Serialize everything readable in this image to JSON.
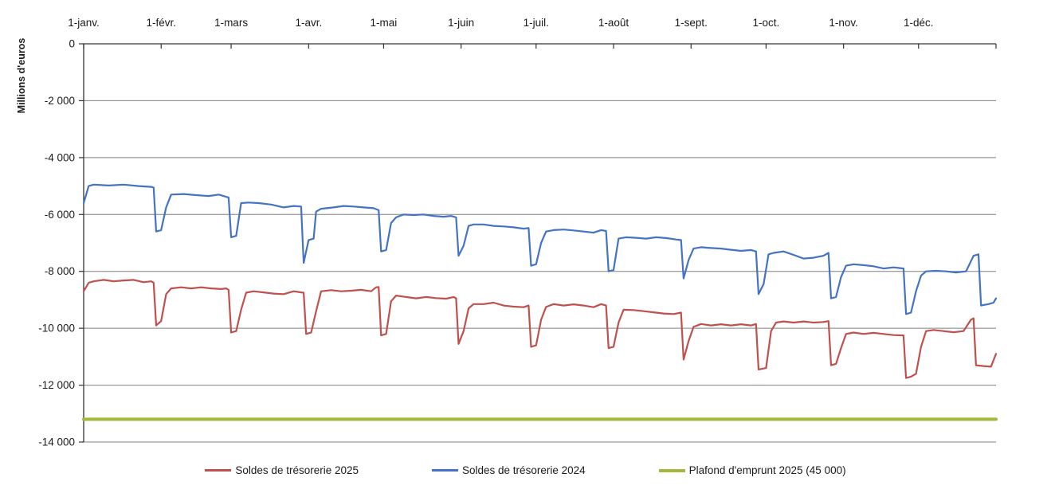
{
  "chart_data": {
    "type": "line",
    "title": "",
    "ylabel": "Millions d'euros",
    "grid": true,
    "legend_position": "bottom",
    "x_axis": {
      "tick_days": [
        0,
        31,
        59,
        90,
        120,
        151,
        181,
        212,
        243,
        273,
        304,
        334
      ],
      "tick_labels": [
        "1-janv.",
        "1-févr.",
        "1-mars",
        "1-avr.",
        "1-mai",
        "1-juin",
        "1-juil.",
        "1-août",
        "1-sept.",
        "1-oct.",
        "1-nov.",
        "1-déc."
      ],
      "days_total": 365
    },
    "y_axis": {
      "ticks": [
        0,
        -2000,
        -4000,
        -6000,
        -8000,
        -10000,
        -12000,
        -14000
      ],
      "tick_labels": [
        "0",
        "-2 000",
        "-4 000",
        "-6 000",
        "-8 000",
        "-10 000",
        "-12 000",
        "-14 000"
      ],
      "range": [
        0,
        -14000
      ]
    },
    "series": [
      {
        "name": "Soldes de trésorerie 2025",
        "color": "#c0504d",
        "stroke_width": 2.2,
        "points": [
          [
            0,
            -8700
          ],
          [
            2,
            -8400
          ],
          [
            4,
            -8350
          ],
          [
            8,
            -8300
          ],
          [
            12,
            -8350
          ],
          [
            16,
            -8320
          ],
          [
            20,
            -8300
          ],
          [
            24,
            -8380
          ],
          [
            27,
            -8350
          ],
          [
            28,
            -8400
          ],
          [
            29,
            -9900
          ],
          [
            31,
            -9750
          ],
          [
            33,
            -8800
          ],
          [
            35,
            -8600
          ],
          [
            39,
            -8560
          ],
          [
            43,
            -8600
          ],
          [
            47,
            -8560
          ],
          [
            51,
            -8600
          ],
          [
            55,
            -8620
          ],
          [
            57,
            -8600
          ],
          [
            58,
            -8650
          ],
          [
            59,
            -10150
          ],
          [
            61,
            -10100
          ],
          [
            63,
            -9350
          ],
          [
            65,
            -8750
          ],
          [
            68,
            -8700
          ],
          [
            72,
            -8740
          ],
          [
            76,
            -8780
          ],
          [
            80,
            -8800
          ],
          [
            84,
            -8700
          ],
          [
            87,
            -8740
          ],
          [
            88,
            -8750
          ],
          [
            89,
            -10200
          ],
          [
            91,
            -10150
          ],
          [
            93,
            -9400
          ],
          [
            95,
            -8700
          ],
          [
            99,
            -8660
          ],
          [
            103,
            -8700
          ],
          [
            107,
            -8680
          ],
          [
            111,
            -8650
          ],
          [
            115,
            -8700
          ],
          [
            117,
            -8560
          ],
          [
            118,
            -8550
          ],
          [
            119,
            -10250
          ],
          [
            121,
            -10200
          ],
          [
            123,
            -9050
          ],
          [
            125,
            -8850
          ],
          [
            129,
            -8900
          ],
          [
            133,
            -8950
          ],
          [
            137,
            -8900
          ],
          [
            141,
            -8940
          ],
          [
            145,
            -8960
          ],
          [
            148,
            -8900
          ],
          [
            149,
            -8950
          ],
          [
            150,
            -10550
          ],
          [
            152,
            -10100
          ],
          [
            154,
            -9300
          ],
          [
            156,
            -9150
          ],
          [
            160,
            -9150
          ],
          [
            164,
            -9100
          ],
          [
            168,
            -9200
          ],
          [
            172,
            -9240
          ],
          [
            176,
            -9260
          ],
          [
            178,
            -9200
          ],
          [
            179,
            -10650
          ],
          [
            181,
            -10600
          ],
          [
            183,
            -9700
          ],
          [
            185,
            -9250
          ],
          [
            188,
            -9150
          ],
          [
            192,
            -9200
          ],
          [
            196,
            -9160
          ],
          [
            200,
            -9200
          ],
          [
            204,
            -9260
          ],
          [
            207,
            -9150
          ],
          [
            209,
            -9200
          ],
          [
            210,
            -10700
          ],
          [
            212,
            -10650
          ],
          [
            214,
            -9800
          ],
          [
            216,
            -9350
          ],
          [
            220,
            -9360
          ],
          [
            224,
            -9400
          ],
          [
            228,
            -9440
          ],
          [
            232,
            -9480
          ],
          [
            236,
            -9500
          ],
          [
            239,
            -9450
          ],
          [
            240,
            -11100
          ],
          [
            242,
            -10450
          ],
          [
            244,
            -9950
          ],
          [
            247,
            -9850
          ],
          [
            251,
            -9900
          ],
          [
            255,
            -9860
          ],
          [
            259,
            -9900
          ],
          [
            263,
            -9860
          ],
          [
            267,
            -9900
          ],
          [
            269,
            -9850
          ],
          [
            270,
            -11450
          ],
          [
            273,
            -11400
          ],
          [
            275,
            -10100
          ],
          [
            277,
            -9800
          ],
          [
            280,
            -9760
          ],
          [
            284,
            -9800
          ],
          [
            288,
            -9760
          ],
          [
            292,
            -9800
          ],
          [
            296,
            -9780
          ],
          [
            298,
            -9750
          ],
          [
            299,
            -11300
          ],
          [
            301,
            -11250
          ],
          [
            303,
            -10700
          ],
          [
            305,
            -10200
          ],
          [
            308,
            -10150
          ],
          [
            312,
            -10200
          ],
          [
            316,
            -10160
          ],
          [
            320,
            -10200
          ],
          [
            324,
            -10240
          ],
          [
            328,
            -10250
          ],
          [
            329,
            -11750
          ],
          [
            331,
            -11700
          ],
          [
            333,
            -11600
          ],
          [
            335,
            -10650
          ],
          [
            337,
            -10100
          ],
          [
            340,
            -10060
          ],
          [
            344,
            -10100
          ],
          [
            348,
            -10140
          ],
          [
            352,
            -10100
          ],
          [
            355,
            -9700
          ],
          [
            356,
            -9650
          ],
          [
            357,
            -11300
          ],
          [
            360,
            -11330
          ],
          [
            363,
            -11350
          ],
          [
            365,
            -10900
          ]
        ]
      },
      {
        "name": "Soldes de trésorerie 2024",
        "color": "#4472c4",
        "stroke_width": 2.2,
        "points": [
          [
            0,
            -5600
          ],
          [
            2,
            -5000
          ],
          [
            4,
            -4950
          ],
          [
            10,
            -4980
          ],
          [
            16,
            -4950
          ],
          [
            22,
            -5000
          ],
          [
            27,
            -5030
          ],
          [
            28,
            -5050
          ],
          [
            29,
            -6600
          ],
          [
            31,
            -6550
          ],
          [
            33,
            -5750
          ],
          [
            35,
            -5300
          ],
          [
            40,
            -5280
          ],
          [
            45,
            -5320
          ],
          [
            50,
            -5350
          ],
          [
            54,
            -5300
          ],
          [
            57,
            -5380
          ],
          [
            58,
            -5400
          ],
          [
            59,
            -6800
          ],
          [
            61,
            -6750
          ],
          [
            63,
            -5600
          ],
          [
            66,
            -5580
          ],
          [
            70,
            -5600
          ],
          [
            75,
            -5650
          ],
          [
            80,
            -5750
          ],
          [
            84,
            -5700
          ],
          [
            87,
            -5720
          ],
          [
            88,
            -7700
          ],
          [
            90,
            -6900
          ],
          [
            92,
            -6850
          ],
          [
            93,
            -5900
          ],
          [
            95,
            -5800
          ],
          [
            100,
            -5750
          ],
          [
            104,
            -5700
          ],
          [
            108,
            -5720
          ],
          [
            112,
            -5750
          ],
          [
            116,
            -5780
          ],
          [
            118,
            -5850
          ],
          [
            119,
            -7300
          ],
          [
            121,
            -7250
          ],
          [
            123,
            -6300
          ],
          [
            125,
            -6100
          ],
          [
            128,
            -6000
          ],
          [
            132,
            -6020
          ],
          [
            136,
            -6000
          ],
          [
            140,
            -6050
          ],
          [
            144,
            -6080
          ],
          [
            147,
            -6050
          ],
          [
            149,
            -6100
          ],
          [
            150,
            -7450
          ],
          [
            152,
            -7100
          ],
          [
            154,
            -6400
          ],
          [
            156,
            -6350
          ],
          [
            160,
            -6350
          ],
          [
            164,
            -6400
          ],
          [
            168,
            -6420
          ],
          [
            172,
            -6450
          ],
          [
            176,
            -6500
          ],
          [
            178,
            -6480
          ],
          [
            179,
            -7800
          ],
          [
            181,
            -7750
          ],
          [
            183,
            -7000
          ],
          [
            185,
            -6600
          ],
          [
            188,
            -6550
          ],
          [
            192,
            -6530
          ],
          [
            196,
            -6560
          ],
          [
            200,
            -6600
          ],
          [
            204,
            -6640
          ],
          [
            207,
            -6550
          ],
          [
            209,
            -6580
          ],
          [
            210,
            -8000
          ],
          [
            212,
            -7950
          ],
          [
            214,
            -6850
          ],
          [
            217,
            -6800
          ],
          [
            221,
            -6820
          ],
          [
            225,
            -6850
          ],
          [
            229,
            -6800
          ],
          [
            233,
            -6830
          ],
          [
            237,
            -6880
          ],
          [
            239,
            -6900
          ],
          [
            240,
            -8250
          ],
          [
            242,
            -7600
          ],
          [
            244,
            -7200
          ],
          [
            247,
            -7150
          ],
          [
            251,
            -7180
          ],
          [
            255,
            -7200
          ],
          [
            259,
            -7240
          ],
          [
            263,
            -7280
          ],
          [
            267,
            -7250
          ],
          [
            269,
            -7300
          ],
          [
            270,
            -8800
          ],
          [
            272,
            -8450
          ],
          [
            274,
            -7400
          ],
          [
            276,
            -7350
          ],
          [
            280,
            -7300
          ],
          [
            284,
            -7420
          ],
          [
            288,
            -7550
          ],
          [
            292,
            -7520
          ],
          [
            296,
            -7450
          ],
          [
            298,
            -7350
          ],
          [
            299,
            -8950
          ],
          [
            301,
            -8900
          ],
          [
            303,
            -8200
          ],
          [
            305,
            -7800
          ],
          [
            308,
            -7750
          ],
          [
            312,
            -7780
          ],
          [
            316,
            -7820
          ],
          [
            320,
            -7900
          ],
          [
            324,
            -7860
          ],
          [
            328,
            -7900
          ],
          [
            329,
            -9500
          ],
          [
            331,
            -9450
          ],
          [
            333,
            -8700
          ],
          [
            335,
            -8150
          ],
          [
            337,
            -8000
          ],
          [
            341,
            -7980
          ],
          [
            345,
            -8000
          ],
          [
            349,
            -8040
          ],
          [
            353,
            -8000
          ],
          [
            356,
            -7450
          ],
          [
            358,
            -7400
          ],
          [
            359,
            -9200
          ],
          [
            362,
            -9150
          ],
          [
            364,
            -9100
          ],
          [
            365,
            -8950
          ]
        ]
      },
      {
        "name": "Plafond d'emprunt 2025 (45 000)",
        "color": "#a2b93c",
        "stroke_width": 4,
        "points": [
          [
            0,
            -13200
          ],
          [
            365,
            -13200
          ]
        ]
      }
    ],
    "legend": [
      "Soldes de trésorerie 2025",
      "Soldes de trésorerie 2024",
      "Plafond d'emprunt 2025 (45 000)"
    ]
  }
}
